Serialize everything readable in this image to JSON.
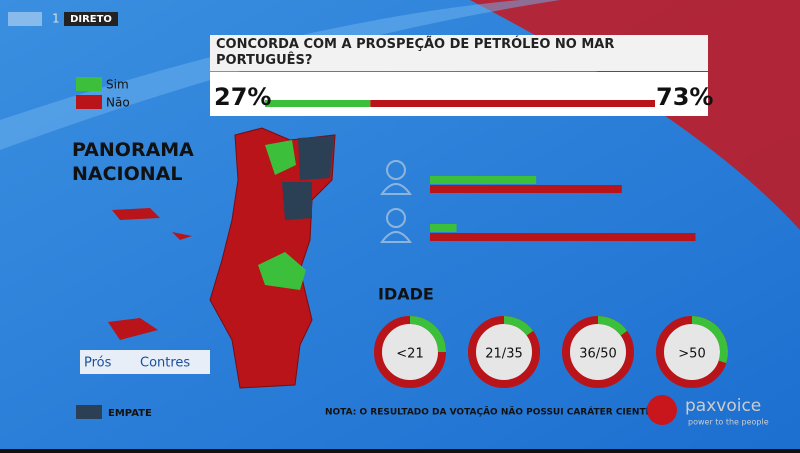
{
  "header": {
    "channel": "1",
    "live": "DIRETO"
  },
  "poll": {
    "question": "CONCORDA COM A PROSPEÇÃO DE PETRÓLEO NO MAR PORTUGUÊS?",
    "legend": [
      {
        "name": "Sim",
        "color": "#3cbf3a"
      },
      {
        "name": "Não",
        "color": "#b8141a"
      }
    ],
    "result": {
      "values": [
        27,
        73
      ],
      "value_labels": [
        "27%",
        "73%"
      ]
    },
    "gender": {
      "xlim": [
        0,
        100
      ],
      "rows": [
        [
          36,
          65
        ],
        [
          9,
          90
        ]
      ]
    },
    "age": {
      "title": "IDADE",
      "groups": [
        {
          "label": "<21",
          "sim": 25
        },
        {
          "label": "21/35",
          "sim": 15
        },
        {
          "label": "36/50",
          "sim": 15
        },
        {
          "label": ">50",
          "sim": 30
        }
      ]
    }
  },
  "map": {
    "title": "PANORAMA NACIONAL",
    "tie": {
      "label": "EMPATE",
      "color": "#2b3f55"
    }
  },
  "show": {
    "left": "Prós",
    "right": "Contres"
  },
  "note": "NOTA: O RESULTADO DA VOTAÇÃO NÃO POSSUI CARÁTER CIENTÍFICO",
  "brand": {
    "name": "paxvoice",
    "tagline": "power to the people"
  }
}
